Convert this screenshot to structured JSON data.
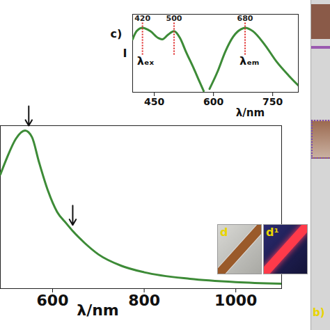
{
  "chart_data": [
    {
      "type": "line",
      "x_label": "λ/nm",
      "color": "#3d8b37",
      "xlim": [
        486,
        1100
      ],
      "xticks": [
        600,
        800,
        1000
      ],
      "ylim": [
        0,
        1
      ],
      "tick_labels": "x",
      "x": [
        486,
        500,
        520,
        540,
        555,
        570,
        590,
        610,
        630,
        645,
        670,
        700,
        750,
        800,
        900,
        1000,
        1100
      ],
      "values": [
        0.7,
        0.8,
        0.92,
        0.97,
        0.93,
        0.78,
        0.6,
        0.47,
        0.4,
        0.35,
        0.28,
        0.21,
        0.14,
        0.1,
        0.06,
        0.04,
        0.03
      ],
      "arrows": [
        {
          "x": 548,
          "y": 0.97
        },
        {
          "x": 644,
          "y": 0.36
        }
      ]
    },
    {
      "type": "line",
      "label": "c)",
      "x_label": "λ/nm",
      "y_label": "I",
      "xlim": [
        395,
        815
      ],
      "xticks": [
        450,
        600,
        750
      ],
      "ylim": [
        0,
        1.15
      ],
      "tick_labels": "x",
      "series": [
        {
          "name": "λₑₓ",
          "color": "#3d8b37",
          "peaks": [
            420,
            500
          ],
          "x": [
            395,
            405,
            420,
            440,
            460,
            470,
            485,
            500,
            515,
            530,
            550,
            565,
            575
          ],
          "values": [
            0.78,
            0.9,
            0.95,
            0.9,
            0.8,
            0.78,
            0.85,
            0.9,
            0.8,
            0.6,
            0.35,
            0.15,
            0.02
          ]
        },
        {
          "name": "λₑₘ",
          "color": "#3d8b37",
          "peaks": [
            680
          ],
          "x": [
            590,
            610,
            630,
            650,
            670,
            680,
            700,
            730,
            760,
            790,
            815
          ],
          "values": [
            0.05,
            0.3,
            0.6,
            0.82,
            0.93,
            0.95,
            0.9,
            0.7,
            0.45,
            0.25,
            0.1
          ]
        }
      ]
    }
  ],
  "photos": [
    {
      "label": "d"
    },
    {
      "label": "d¹"
    },
    {
      "label": "b)"
    }
  ]
}
